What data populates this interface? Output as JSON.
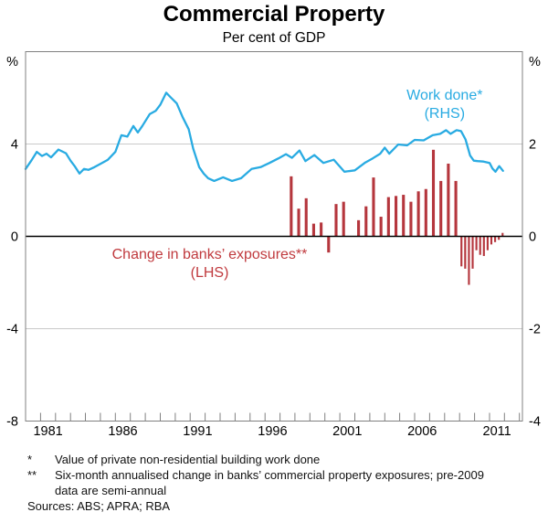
{
  "header": {
    "title": "Commercial Property",
    "subtitle": "Per cent of GDP"
  },
  "colors": {
    "line": "#29abe2",
    "bar": "#b5363d",
    "bar_label": "#c03a3e",
    "grid": "#c9c9c9",
    "zero_line": "#000000",
    "frame": "#808080",
    "text": "#000000"
  },
  "chart_data": {
    "type": "combo",
    "x_range": [
      1980,
      2013.2
    ],
    "x_label_years": [
      1981,
      1986,
      1991,
      1996,
      2001,
      2006,
      2011
    ],
    "left_axis": {
      "unit": "%",
      "range": [
        -8,
        8
      ],
      "tick_labels": [
        4,
        0,
        -4,
        -8
      ],
      "gridline_values": [
        4,
        -4
      ]
    },
    "right_axis": {
      "unit": "%",
      "range": [
        -4,
        4
      ],
      "tick_labels": [
        2,
        0,
        -2,
        -4
      ]
    },
    "series": [
      {
        "name": "Work done",
        "type": "line",
        "axis": "right",
        "x": [
          1980.0,
          1980.4,
          1980.75,
          1981.1,
          1981.4,
          1981.7,
          1982.2,
          1982.7,
          1983.0,
          1983.3,
          1983.6,
          1983.9,
          1984.2,
          1984.6,
          1985.0,
          1985.5,
          1986.0,
          1986.4,
          1986.8,
          1987.2,
          1987.5,
          1987.8,
          1988.3,
          1988.7,
          1989.0,
          1989.4,
          1989.7,
          1990.1,
          1990.5,
          1990.9,
          1991.2,
          1991.6,
          1991.9,
          1992.2,
          1992.6,
          1993.2,
          1993.8,
          1994.4,
          1995.1,
          1995.7,
          1996.3,
          1996.9,
          1997.4,
          1997.8,
          1998.3,
          1998.7,
          1999.3,
          1999.9,
          2000.6,
          2001.3,
          2002.0,
          2002.7,
          2003.2,
          2003.7,
          2004.0,
          2004.3,
          2004.9,
          2005.5,
          2006.0,
          2006.6,
          2007.2,
          2007.7,
          2008.1,
          2008.4,
          2008.8,
          2009.1,
          2009.4,
          2009.7,
          2009.95,
          2010.2,
          2010.6,
          2011.0,
          2011.2,
          2011.4,
          2011.65,
          2011.9
        ],
        "y": [
          1.46,
          1.65,
          1.83,
          1.74,
          1.79,
          1.71,
          1.88,
          1.8,
          1.64,
          1.51,
          1.36,
          1.46,
          1.44,
          1.5,
          1.57,
          1.66,
          1.83,
          2.19,
          2.16,
          2.39,
          2.25,
          2.39,
          2.65,
          2.72,
          2.85,
          3.11,
          3.01,
          2.88,
          2.58,
          2.32,
          1.9,
          1.5,
          1.36,
          1.26,
          1.2,
          1.28,
          1.2,
          1.26,
          1.46,
          1.5,
          1.59,
          1.69,
          1.78,
          1.7,
          1.86,
          1.63,
          1.76,
          1.59,
          1.66,
          1.4,
          1.43,
          1.6,
          1.69,
          1.79,
          1.92,
          1.79,
          1.99,
          1.97,
          2.09,
          2.08,
          2.19,
          2.22,
          2.3,
          2.22,
          2.3,
          2.28,
          2.1,
          1.75,
          1.64,
          1.63,
          1.62,
          1.59,
          1.47,
          1.4,
          1.52,
          1.42
        ]
      },
      {
        "name": "Change in banks’ exposures",
        "type": "bar",
        "axis": "left",
        "segments": [
          {
            "frequency": "semi-annual (pre-2009)",
            "bar_width_years": 0.19,
            "x": [
              1997.75,
              1998.25,
              1998.75,
              1999.25,
              1999.75,
              2000.25,
              2000.75,
              2001.25,
              2001.75,
              2002.25,
              2002.75,
              2003.25,
              2003.75,
              2004.25,
              2004.75,
              2005.25,
              2005.75,
              2006.25,
              2006.75,
              2007.25,
              2007.75,
              2008.25,
              2008.75
            ],
            "y": [
              2.6,
              1.2,
              1.65,
              0.55,
              0.6,
              -0.7,
              1.4,
              1.5,
              0.0,
              0.7,
              1.3,
              2.55,
              0.85,
              1.7,
              1.75,
              1.8,
              1.5,
              1.95,
              2.05,
              3.75,
              2.4,
              3.15,
              2.4
            ]
          },
          {
            "frequency": "six-month annualised (from 2009)",
            "bar_width_years": 0.13,
            "x": [
              2009.125,
              2009.375,
              2009.625,
              2009.875,
              2010.125,
              2010.375,
              2010.625,
              2010.875,
              2011.125,
              2011.375,
              2011.625,
              2011.875
            ],
            "y": [
              -1.3,
              -1.4,
              -2.1,
              -1.4,
              -0.6,
              -0.8,
              -0.85,
              -0.6,
              -0.35,
              -0.25,
              -0.15,
              0.15
            ]
          }
        ]
      }
    ],
    "annotations": [
      {
        "lines": [
          "Work done*",
          "(RHS)"
        ],
        "x": 2008.0,
        "y": 2.96,
        "axis": "right",
        "color_key": "line"
      },
      {
        "lines": [
          "Change in banks’ exposures**",
          "(LHS)"
        ],
        "x": 1992.3,
        "y": -0.97,
        "axis": "left",
        "color_key": "bar_label"
      }
    ]
  },
  "footnotes": [
    {
      "marker": "*",
      "text": "Value of private non-residential building work done"
    },
    {
      "marker": "**",
      "text": "Six-month annualised change in banks’ commercial property exposures; pre-2009 data are semi-annual"
    }
  ],
  "sources": "Sources: ABS; APRA; RBA"
}
